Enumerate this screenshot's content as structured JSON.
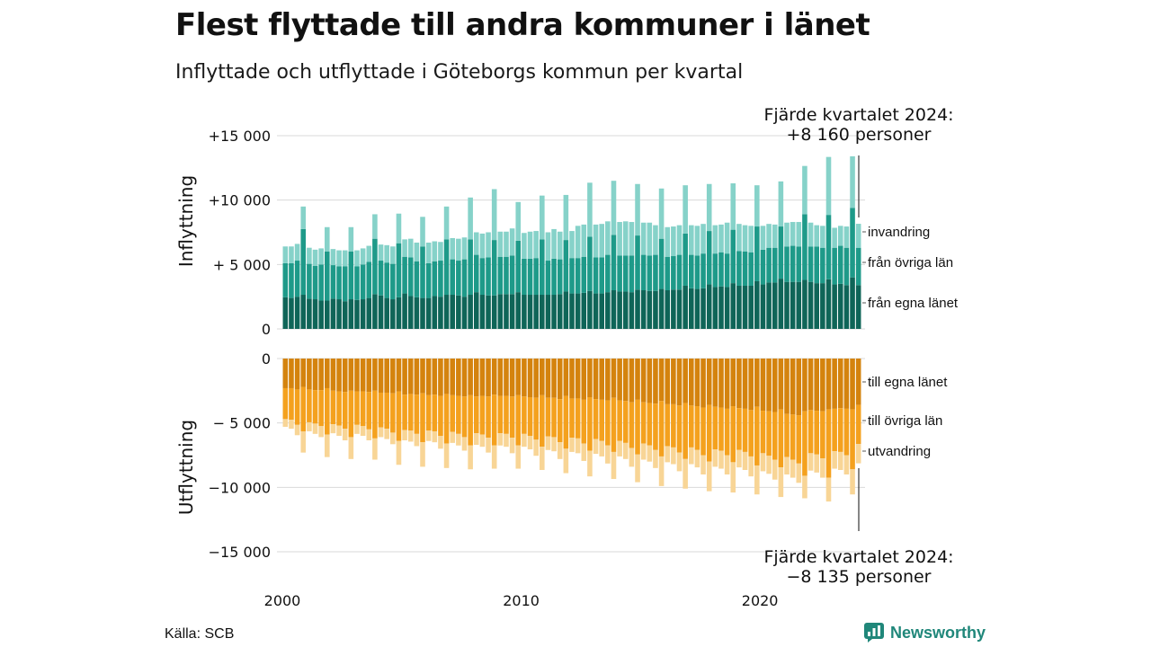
{
  "title": "Flest flyttade till andra kommuner i länet",
  "subtitle": "Inflyttade och utflyttade i Göteborgs kommun per kvartal",
  "source": "Källa: SCB",
  "brand": "Newsworthy",
  "colors": {
    "in_egna": "#0f6558",
    "in_ovriga": "#1e9a89",
    "in_invandring": "#86d2c9",
    "out_egna": "#d4830e",
    "out_ovriga": "#f4a11e",
    "out_utvandring": "#f8d596",
    "gridline": "#d9d9d9",
    "brand": "#20877a"
  },
  "chart_data": {
    "type": "bar",
    "x_ticks": [
      "2000",
      "2010",
      "2020"
    ],
    "panels": [
      {
        "ylabel": "Inflyttning",
        "ylim": [
          0,
          15000
        ],
        "y_ticks": [
          "+15 000",
          "+10 000",
          "+ 5 000",
          "0"
        ],
        "annotation": [
          "Fjärde kvartalet 2024:",
          "+8 160 personer"
        ],
        "series": [
          {
            "name": "från egna länet",
            "values": [
              2450,
              2400,
              2500,
              2650,
              2350,
              2300,
              2200,
              2200,
              2350,
              2300,
              2150,
              2300,
              2250,
              2300,
              2400,
              2700,
              2600,
              2400,
              2300,
              2450,
              2750,
              2550,
              2450,
              2400,
              2400,
              2550,
              2500,
              2650,
              2650,
              2600,
              2500,
              2650,
              2850,
              2650,
              2600,
              2600,
              2700,
              2700,
              2700,
              2850,
              2650,
              2650,
              2650,
              2650,
              2650,
              2650,
              2700,
              2900,
              2750,
              2750,
              2800,
              2950,
              2750,
              2750,
              2850,
              3000,
              2900,
              2900,
              2850,
              3050,
              3000,
              2950,
              2950,
              3100,
              3000,
              3050,
              3050,
              3350,
              3150,
              3100,
              3150,
              3450,
              3250,
              3300,
              3250,
              3550,
              3350,
              3350,
              3350,
              3700,
              3450,
              3600,
              3600,
              3900,
              3650,
              3650,
              3650,
              3800,
              3650,
              3550,
              3550,
              3850,
              3450,
              3500,
              3400,
              4000,
              3400
            ]
          },
          {
            "name": "från övriga län",
            "values": [
              2650,
              2700,
              2800,
              5100,
              2700,
              2600,
              2800,
              3800,
              2600,
              2550,
              2700,
              3700,
              2600,
              2700,
              2800,
              4300,
              2700,
              2750,
              2750,
              4200,
              2850,
              3000,
              2800,
              4000,
              2700,
              2700,
              2800,
              4300,
              2750,
              2700,
              2900,
              4300,
              2900,
              2850,
              2950,
              4300,
              2900,
              2900,
              3000,
              4000,
              2800,
              2800,
              2850,
              4300,
              2650,
              2800,
              2700,
              4000,
              2750,
              2750,
              2800,
              4200,
              2800,
              2800,
              2900,
              4300,
              2800,
              2800,
              2850,
              4200,
              2750,
              2750,
              2800,
              3900,
              2600,
              2600,
              2700,
              4050,
              2600,
              2600,
              2700,
              4150,
              2600,
              2650,
              2600,
              4150,
              2700,
              2650,
              2600,
              4250,
              2700,
              2700,
              2700,
              4050,
              2750,
              2800,
              2750,
              5100,
              2750,
              2850,
              2750,
              5000,
              2850,
              2950,
              2900,
              5400,
              2900
            ]
          },
          {
            "name": "invandring",
            "values": [
              1300,
              1300,
              1300,
              1750,
              1250,
              1250,
              1250,
              1900,
              1250,
              1250,
              1250,
              1900,
              1250,
              1250,
              1250,
              1900,
              1250,
              1350,
              1350,
              2300,
              1350,
              1450,
              1450,
              2300,
              1600,
              1550,
              1450,
              2550,
              1650,
              1700,
              1700,
              3250,
              1750,
              1900,
              1950,
              3950,
              1950,
              1950,
              2100,
              3000,
              2000,
              2100,
              2100,
              3400,
              2200,
              2300,
              2150,
              3500,
              2100,
              2500,
              2500,
              4200,
              2550,
              2600,
              2600,
              4200,
              2600,
              2650,
              2600,
              4000,
              2500,
              2550,
              2300,
              3900,
              2300,
              2300,
              2300,
              3750,
              2300,
              2300,
              2300,
              3650,
              2200,
              2150,
              2400,
              3600,
              2100,
              2050,
              2050,
              3200,
              1850,
              1850,
              1800,
              3500,
              1850,
              1850,
              1900,
              3750,
              1850,
              1650,
              1700,
              4500,
              1550,
              1550,
              1650,
              4000,
              1860
            ]
          }
        ]
      },
      {
        "ylabel": "Utflyttning",
        "ylim": [
          -15000,
          0
        ],
        "y_ticks": [
          "0",
          "− 5 000",
          "−10 000",
          "−15 000"
        ],
        "annotation": [
          "Fjärde kvartalet 2024:",
          "−8 135 personer"
        ],
        "series": [
          {
            "name": "till egna länet",
            "values": [
              -2300,
              -2300,
              -2400,
              -2200,
              -2400,
              -2450,
              -2450,
              -2300,
              -2500,
              -2550,
              -2600,
              -2500,
              -2550,
              -2550,
              -2600,
              -2500,
              -2650,
              -2650,
              -2700,
              -2550,
              -2800,
              -2750,
              -2800,
              -2700,
              -2850,
              -2800,
              -2900,
              -2750,
              -2850,
              -2900,
              -2950,
              -2850,
              -2950,
              -2900,
              -2950,
              -2800,
              -2900,
              -2900,
              -2950,
              -2850,
              -2950,
              -3000,
              -3050,
              -2850,
              -3050,
              -3050,
              -3150,
              -2900,
              -3100,
              -3100,
              -3200,
              -3000,
              -3150,
              -3200,
              -3250,
              -3050,
              -3250,
              -3300,
              -3400,
              -3200,
              -3400,
              -3450,
              -3500,
              -3300,
              -3550,
              -3550,
              -3650,
              -3450,
              -3650,
              -3700,
              -3800,
              -3600,
              -3750,
              -3800,
              -3900,
              -3700,
              -3850,
              -3900,
              -4000,
              -3750,
              -4050,
              -4100,
              -4150,
              -3950,
              -4300,
              -4350,
              -4400,
              -4100,
              -4000,
              -4050,
              -4100,
              -3950,
              -3900,
              -3850,
              -3900,
              -3950,
              -3600
            ]
          },
          {
            "name": "till övriga län",
            "values": [
              -2400,
              -2450,
              -2750,
              -3450,
              -2550,
              -2600,
              -2800,
              -3600,
              -2600,
              -2650,
              -2850,
              -3600,
              -2600,
              -2700,
              -2900,
              -3700,
              -2700,
              -2800,
              -3050,
              -3850,
              -2750,
              -2850,
              -3050,
              -3800,
              -2750,
              -2850,
              -3100,
              -3850,
              -2850,
              -2950,
              -3150,
              -3900,
              -2850,
              -3000,
              -3200,
              -3950,
              -2900,
              -2950,
              -3200,
              -3900,
              -2900,
              -3000,
              -3250,
              -4000,
              -3000,
              -3050,
              -3350,
              -4100,
              -3050,
              -3100,
              -3400,
              -4150,
              -3100,
              -3200,
              -3500,
              -4200,
              -3150,
              -3250,
              -3550,
              -4250,
              -3200,
              -3300,
              -3600,
              -4300,
              -3250,
              -3350,
              -3650,
              -4350,
              -3250,
              -3400,
              -3700,
              -4400,
              -3300,
              -3350,
              -3600,
              -4350,
              -3250,
              -3350,
              -3600,
              -4550,
              -3300,
              -3450,
              -3700,
              -4500,
              -3350,
              -3500,
              -3750,
              -5000,
              -3350,
              -3400,
              -3650,
              -5300,
              -3300,
              -3400,
              -3600,
              -4650,
              -3035
            ]
          },
          {
            "name": "utvandring",
            "values": [
              -600,
              -700,
              -800,
              -1650,
              -700,
              -800,
              -850,
              -1750,
              -700,
              -800,
              -900,
              -1700,
              -700,
              -750,
              -850,
              -1650,
              -750,
              -800,
              -900,
              -1850,
              -800,
              -850,
              -950,
              -1900,
              -800,
              -850,
              -1000,
              -1900,
              -850,
              -900,
              -1050,
              -1850,
              -900,
              -950,
              -1150,
              -1800,
              -950,
              -1000,
              -1200,
              -1800,
              -1000,
              -1050,
              -1250,
              -1800,
              -1050,
              -1100,
              -1300,
              -1900,
              -1100,
              -1150,
              -1350,
              -2000,
              -1150,
              -1200,
              -1400,
              -2100,
              -1200,
              -1250,
              -1450,
              -2150,
              -1250,
              -1250,
              -1400,
              -2300,
              -1250,
              -1300,
              -1450,
              -2300,
              -1300,
              -1350,
              -1500,
              -2300,
              -1350,
              -1400,
              -1500,
              -2350,
              -1350,
              -1400,
              -1550,
              -2250,
              -1400,
              -1400,
              -1550,
              -2300,
              -1350,
              -1400,
              -1500,
              -1750,
              -1350,
              -1400,
              -1500,
              -1850,
              -1350,
              -1400,
              -1500,
              -1950,
              -1500
            ]
          }
        ]
      }
    ]
  }
}
